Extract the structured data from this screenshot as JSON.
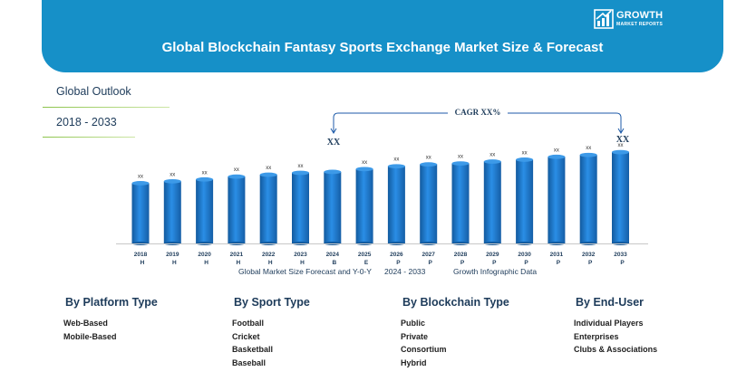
{
  "banner": {
    "title": "Global Blockchain Fantasy Sports Exchange Market Size & Forecast",
    "logo_line1": "GROWTH",
    "logo_line2": "MARKET REPORTS",
    "logo_icon": "growth-logo-icon"
  },
  "outlook": {
    "label": "Global Outlook",
    "years": "2018 - 2033"
  },
  "chart_data": {
    "type": "bar",
    "title": "Global Market Size Forecast and Y-0-Y",
    "categories": [
      "2018",
      "2019",
      "2020",
      "2021",
      "2022",
      "2023",
      "2024",
      "2025",
      "2026",
      "2027",
      "2028",
      "2029",
      "2030",
      "2031",
      "2032",
      "2033"
    ],
    "category_suffix": [
      "H",
      "H",
      "H",
      "H",
      "H",
      "H",
      "B",
      "E",
      "P",
      "P",
      "P",
      "P",
      "P",
      "P",
      "P",
      "P"
    ],
    "values": [
      64,
      66,
      68,
      71,
      73,
      75,
      76,
      79,
      82,
      84,
      85,
      87,
      89,
      92,
      94,
      97
    ],
    "bar_labels": [
      "xx",
      "xx",
      "xx",
      "xx",
      "xx",
      "xx",
      "",
      "xx",
      "xx",
      "xx",
      "xx",
      "xx",
      "xx",
      "xx",
      "xx",
      "xx"
    ],
    "ylim": [
      0,
      100
    ],
    "value_unit": "relative (values not shown, labelled xx)",
    "cagr_label": "CAGR XX%",
    "cagr_start_label": "XX",
    "cagr_end_label": "XX",
    "bar_color": "#1f79cc",
    "subtitle_left": "Global Market Size Forecast and Y-0-Y",
    "subtitle_mid": "2024 - 2033",
    "subtitle_right": "Growth Infographic Data"
  },
  "segments": [
    {
      "title": "By Platform Type",
      "items": [
        "Web-Based",
        "Mobile-Based"
      ]
    },
    {
      "title": "By Sport Type",
      "items": [
        "Football",
        "Cricket",
        "Basketball",
        "Baseball"
      ]
    },
    {
      "title": "By Blockchain Type",
      "items": [
        "Public",
        "Private",
        "Consortium",
        "Hybrid"
      ]
    },
    {
      "title": "By End-User",
      "items": [
        "Individual Players",
        "Enterprises",
        "Clubs & Associations"
      ]
    }
  ]
}
